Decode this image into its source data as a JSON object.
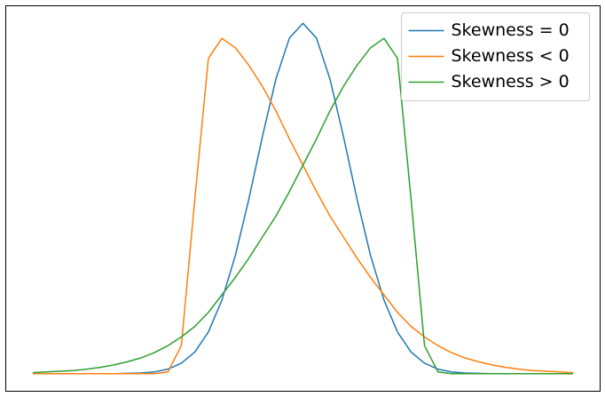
{
  "chart_data": {
    "type": "line",
    "x": [
      -5,
      -4.75,
      -4.5,
      -4.25,
      -4,
      -3.75,
      -3.5,
      -3.25,
      -3,
      -2.75,
      -2.5,
      -2.25,
      -2,
      -1.75,
      -1.5,
      -1.25,
      -1,
      -0.75,
      -0.5,
      -0.25,
      0,
      0.25,
      0.5,
      0.75,
      1,
      1.25,
      1.5,
      1.75,
      2,
      2.25,
      2.5,
      2.75,
      3,
      3.25,
      3.5,
      3.75,
      4,
      4.25,
      4.5,
      4.75,
      5
    ],
    "series": [
      {
        "name": "Skewness = 0",
        "color": "#1f77b4",
        "values": [
          0,
          0,
          0,
          0,
          0,
          0,
          0,
          0.001,
          0.002,
          0.005,
          0.013,
          0.03,
          0.062,
          0.119,
          0.21,
          0.338,
          0.499,
          0.677,
          0.841,
          0.958,
          1,
          0.958,
          0.841,
          0.677,
          0.499,
          0.338,
          0.21,
          0.119,
          0.062,
          0.03,
          0.013,
          0.005,
          0.002,
          0.001,
          0,
          0,
          0,
          0,
          0,
          0,
          0
        ]
      },
      {
        "name": "Skewness < 0",
        "color": "#ff7f0e",
        "values": [
          0,
          0,
          0,
          0,
          0,
          0,
          0,
          0,
          0,
          0,
          0.005,
          0.08,
          0.5,
          0.9,
          0.957,
          0.93,
          0.88,
          0.82,
          0.75,
          0.67,
          0.595,
          0.52,
          0.45,
          0.39,
          0.33,
          0.275,
          0.225,
          0.175,
          0.135,
          0.105,
          0.08,
          0.06,
          0.045,
          0.034,
          0.025,
          0.018,
          0.013,
          0.009,
          0.007,
          0.005,
          0.003
        ]
      },
      {
        "name": "Skewness > 0",
        "color": "#2ca02c",
        "values": [
          0.003,
          0.005,
          0.007,
          0.009,
          0.013,
          0.018,
          0.025,
          0.034,
          0.045,
          0.06,
          0.08,
          0.105,
          0.135,
          0.175,
          0.225,
          0.275,
          0.33,
          0.39,
          0.45,
          0.52,
          0.595,
          0.67,
          0.75,
          0.82,
          0.88,
          0.93,
          0.957,
          0.9,
          0.5,
          0.08,
          0.005,
          0,
          0,
          0,
          0,
          0,
          0,
          0,
          0,
          0,
          0
        ]
      }
    ],
    "xlim": [
      -5.5,
      5.5
    ],
    "ylim": [
      -0.05,
      1.05
    ],
    "legend": "upper right"
  }
}
